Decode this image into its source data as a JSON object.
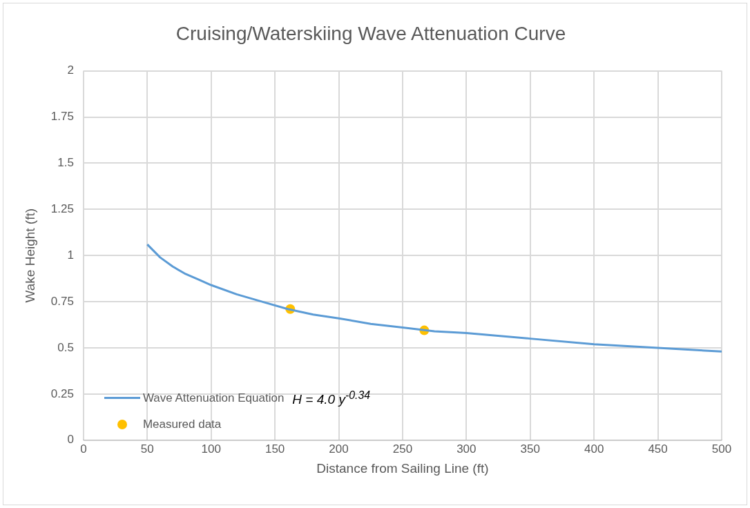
{
  "chart_data": {
    "type": "line",
    "title": "Cruising/Waterskiing Wave Attenuation Curve",
    "xlabel": "Distance from Sailing Line (ft)",
    "ylabel": "Wake Height (ft)",
    "series": [
      {
        "name": "Wave Attenuation Equation",
        "color": "#5b9bd5",
        "marker": "none",
        "x": [
          50,
          60,
          70,
          80,
          90,
          100,
          120,
          140,
          160,
          180,
          200,
          225,
          250,
          275,
          300,
          350,
          400,
          450,
          500
        ],
        "values": [
          1.06,
          0.99,
          0.94,
          0.9,
          0.87,
          0.84,
          0.79,
          0.75,
          0.71,
          0.68,
          0.66,
          0.63,
          0.61,
          0.59,
          0.58,
          0.55,
          0.52,
          0.5,
          0.48
        ]
      },
      {
        "name": "Measured data",
        "type": "scatter",
        "color": "#ffc000",
        "marker": "circle",
        "x": [
          162,
          267
        ],
        "values": [
          0.71,
          0.595
        ]
      }
    ],
    "xlim": [
      0,
      500
    ],
    "xticks": [
      0,
      50,
      100,
      150,
      200,
      250,
      300,
      350,
      400,
      450,
      500
    ],
    "ylim": [
      0,
      2
    ],
    "yticks": [
      0,
      0.25,
      0.5,
      0.75,
      1,
      1.25,
      1.5,
      1.75,
      2
    ],
    "grid": true,
    "legend": "bottom left",
    "annotations": [
      "H = 4.0 y$^{-0.34}$"
    ]
  }
}
